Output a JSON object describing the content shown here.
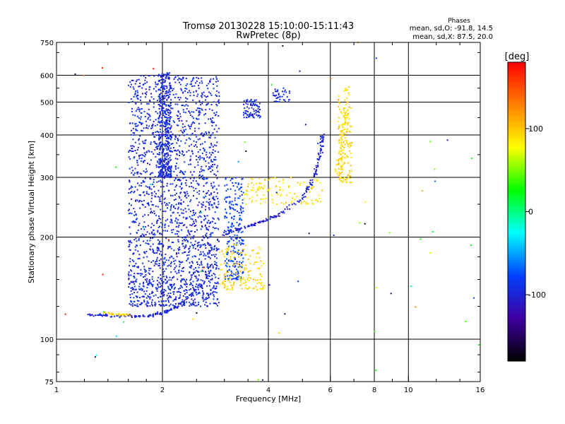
{
  "chart_data": {
    "type": "scatter",
    "title": "Tromsø 20130228 15:10:00-15:11:43",
    "subtitle": "RwPretec (8p)",
    "xlabel": "Frequency [MHz]",
    "ylabel": "Stationary phase Virtual Height [km]",
    "x_scale": "log",
    "y_scale": "log",
    "xlim": [
      1,
      16
    ],
    "ylim": [
      75,
      750
    ],
    "x_ticks": [
      {
        "value": 1,
        "label": "1"
      },
      {
        "value": 2,
        "label": "2"
      },
      {
        "value": 4,
        "label": "4"
      },
      {
        "value": 6,
        "label": "6"
      },
      {
        "value": 8,
        "label": "8"
      },
      {
        "value": 10,
        "label": "10"
      },
      {
        "value": 16,
        "label": "16"
      }
    ],
    "x_gridlines": [
      2,
      4,
      6,
      8,
      10
    ],
    "y_ticks": [
      {
        "value": 75,
        "label": "75"
      },
      {
        "value": 100,
        "label": "100"
      },
      {
        "value": 200,
        "label": "200"
      },
      {
        "value": 300,
        "label": "300"
      },
      {
        "value": 400,
        "label": "400"
      },
      {
        "value": 500,
        "label": "500"
      },
      {
        "value": 600,
        "label": "600"
      },
      {
        "value": 750,
        "label": "750"
      }
    ],
    "y_gridlines": [
      100,
      200,
      300,
      400,
      500,
      600
    ],
    "grid": true,
    "phase_info": {
      "heading": "Phases",
      "line_o": "mean, sd,O: -91.8, 14.5",
      "line_x": "mean, sd,X: 87.5, 20.0"
    },
    "colorbar": {
      "label": "[deg]",
      "range": [
        -180,
        180
      ],
      "ticks": [
        {
          "value": 100,
          "label": "100"
        },
        {
          "value": 0,
          "label": "0"
        },
        {
          "value": -100,
          "label": "-100"
        }
      ],
      "colors": [
        "#ff0000",
        "#ff8000",
        "#ffff00",
        "#00ff00",
        "#00ffff",
        "#0040ff",
        "#4000a0",
        "#000000"
      ]
    },
    "series": [
      {
        "shape": "region",
        "x": [
          1.6,
          2.9
        ],
        "y": [
          125,
          600
        ],
        "phase": -95,
        "density": 2000
      },
      {
        "shape": "region",
        "x": [
          1.95,
          2.12
        ],
        "y": [
          300,
          610
        ],
        "phase": -95,
        "density": 400
      },
      {
        "shape": "region",
        "x": [
          3.0,
          3.4
        ],
        "y": [
          150,
          300
        ],
        "phase": -80,
        "density": 250
      },
      {
        "shape": "region",
        "x": [
          3.4,
          3.8
        ],
        "y": [
          450,
          510
        ],
        "phase": -95,
        "density": 80
      },
      {
        "shape": "region",
        "x": [
          4.1,
          4.6
        ],
        "y": [
          500,
          550
        ],
        "phase": -95,
        "density": 40
      },
      {
        "shape": "region",
        "x": [
          3.4,
          5.7
        ],
        "y": [
          250,
          300
        ],
        "phase": 90,
        "density": 120
      },
      {
        "shape": "region",
        "x": [
          2.9,
          3.9
        ],
        "y": [
          140,
          190
        ],
        "phase": 95,
        "density": 150
      },
      {
        "shape": "region",
        "x": [
          6.3,
          6.9
        ],
        "y": [
          290,
          560
        ],
        "phase": 95,
        "density": 150
      },
      {
        "shape": "curve",
        "x": [
          1.22,
          1.5,
          1.8,
          2.05,
          2.2
        ],
        "y": [
          118,
          117,
          117,
          120,
          125
        ],
        "phase": -100,
        "spread": 0.02,
        "count": 120
      },
      {
        "shape": "curve",
        "x": [
          1.35,
          1.5,
          1.62
        ],
        "y": [
          120,
          118,
          118
        ],
        "phase": 95,
        "spread": 0.02,
        "count": 30
      },
      {
        "shape": "curve",
        "x": [
          2.2,
          2.6,
          3.0,
          3.5,
          4.2,
          5.0,
          5.4,
          5.65,
          5.72
        ],
        "y": [
          125,
          145,
          205,
          215,
          230,
          260,
          300,
          360,
          400
        ],
        "phase": -100,
        "spread": 0.02,
        "count": 220
      },
      {
        "shape": "curve",
        "x": [
          6.25,
          6.4,
          6.55,
          6.65
        ],
        "y": [
          300,
          350,
          420,
          480
        ],
        "phase": 90,
        "spread": 0.03,
        "count": 60
      }
    ]
  }
}
